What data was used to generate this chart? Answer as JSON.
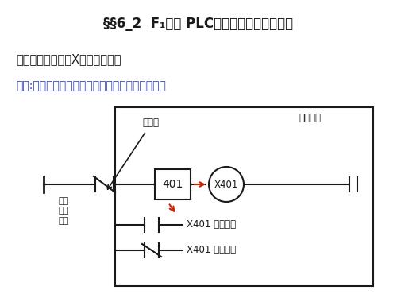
{
  "title_line1": "§§6_2  F₁系列 PLC内部继电器编号和功能",
  "section_title": "一、输入继电器（X）编号和功能",
  "function_text": "功能:与外部输入一一对应，由外部输入信号驱动。",
  "label_input_end": "输入端",
  "label_user_contact": "用户\n输入\n触点",
  "label_401": "401",
  "label_x401": "X401",
  "label_coil": "输入线圈",
  "label_no": "X401 常开接点",
  "label_nc": "X401 常闭接点",
  "bg_color": "#ffffff",
  "text_color": "#1a1a1a",
  "blue_color": "#3344bb",
  "red_color": "#cc2200",
  "line_color": "#1a1a1a"
}
